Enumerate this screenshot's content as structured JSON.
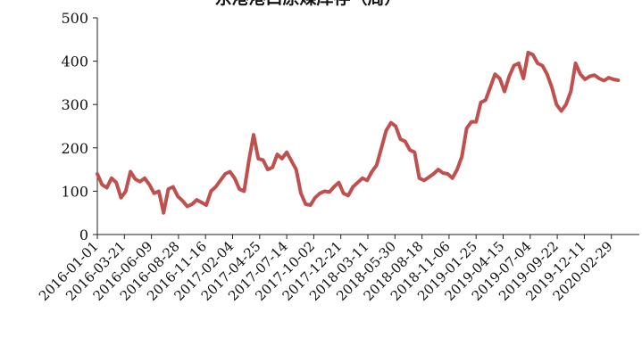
{
  "chart_data": {
    "type": "line",
    "title": "东港港口原煤库存（周）",
    "xlabel": "",
    "ylabel": "",
    "ylim": [
      0,
      500
    ],
    "yticks": [
      0,
      100,
      200,
      300,
      400,
      500
    ],
    "grid": false,
    "legend": "none",
    "series_color": "#c0504d",
    "xticks": [
      "2016-01-01",
      "2016-03-21",
      "2016-06-09",
      "2016-08-28",
      "2016-11-16",
      "2017-02-04",
      "2017-04-25",
      "2017-07-14",
      "2017-10-02",
      "2017-12-21",
      "2018-03-11",
      "2018-05-30",
      "2018-08-18",
      "2018-11-06",
      "2019-01-25",
      "2019-04-15",
      "2019-07-04",
      "2019-09-22",
      "2019-12-11",
      "2020-02-29"
    ],
    "x": [
      "2016-01-01",
      "2016-01-15",
      "2016-01-29",
      "2016-02-12",
      "2016-02-26",
      "2016-03-11",
      "2016-03-25",
      "2016-04-08",
      "2016-04-22",
      "2016-05-06",
      "2016-05-20",
      "2016-06-03",
      "2016-06-17",
      "2016-07-01",
      "2016-07-15",
      "2016-07-29",
      "2016-08-12",
      "2016-08-26",
      "2016-09-09",
      "2016-09-23",
      "2016-10-07",
      "2016-10-21",
      "2016-11-04",
      "2016-11-18",
      "2016-12-02",
      "2016-12-16",
      "2016-12-30",
      "2017-01-13",
      "2017-01-27",
      "2017-02-10",
      "2017-02-24",
      "2017-03-10",
      "2017-03-24",
      "2017-04-07",
      "2017-04-21",
      "2017-05-05",
      "2017-05-19",
      "2017-06-02",
      "2017-06-16",
      "2017-06-30",
      "2017-07-14",
      "2017-07-28",
      "2017-08-11",
      "2017-08-25",
      "2017-09-08",
      "2017-09-22",
      "2017-10-06",
      "2017-10-20",
      "2017-11-03",
      "2017-11-17",
      "2017-12-01",
      "2017-12-15",
      "2017-12-29",
      "2018-01-12",
      "2018-01-26",
      "2018-02-09",
      "2018-02-23",
      "2018-03-09",
      "2018-03-23",
      "2018-04-06",
      "2018-04-20",
      "2018-05-04",
      "2018-05-18",
      "2018-06-01",
      "2018-06-15",
      "2018-06-29",
      "2018-07-13",
      "2018-07-27",
      "2018-08-10",
      "2018-08-24",
      "2018-09-07",
      "2018-09-21",
      "2018-10-05",
      "2018-10-19",
      "2018-11-02",
      "2018-11-16",
      "2018-11-30",
      "2018-12-14",
      "2018-12-28",
      "2019-01-11",
      "2019-01-25",
      "2019-02-08",
      "2019-02-22",
      "2019-03-08",
      "2019-03-22",
      "2019-04-05",
      "2019-04-19",
      "2019-05-03",
      "2019-05-17",
      "2019-05-31",
      "2019-06-14",
      "2019-06-28",
      "2019-07-12",
      "2019-07-26",
      "2019-08-09",
      "2019-08-23",
      "2019-09-06",
      "2019-09-20",
      "2019-10-04",
      "2019-10-18",
      "2019-11-01",
      "2019-11-15",
      "2019-11-29",
      "2019-12-13",
      "2019-12-27",
      "2020-01-10",
      "2020-01-24",
      "2020-02-07",
      "2020-02-21",
      "2020-03-06",
      "2020-03-20"
    ],
    "values": [
      140,
      115,
      108,
      130,
      120,
      85,
      100,
      145,
      128,
      122,
      130,
      115,
      95,
      100,
      50,
      105,
      110,
      88,
      78,
      65,
      70,
      80,
      74,
      68,
      100,
      110,
      125,
      140,
      145,
      130,
      105,
      100,
      170,
      230,
      175,
      172,
      150,
      155,
      185,
      175,
      190,
      170,
      150,
      95,
      70,
      68,
      85,
      95,
      100,
      98,
      110,
      120,
      95,
      90,
      110,
      120,
      130,
      125,
      145,
      160,
      200,
      240,
      258,
      250,
      220,
      215,
      195,
      190,
      130,
      125,
      132,
      140,
      150,
      142,
      140,
      130,
      150,
      180,
      245,
      260,
      260,
      305,
      310,
      340,
      370,
      360,
      330,
      365,
      390,
      395,
      360,
      420,
      415,
      395,
      390,
      370,
      340,
      300,
      285,
      300,
      330,
      395,
      370,
      358,
      365,
      368,
      360,
      355,
      362,
      358,
      356
    ]
  }
}
